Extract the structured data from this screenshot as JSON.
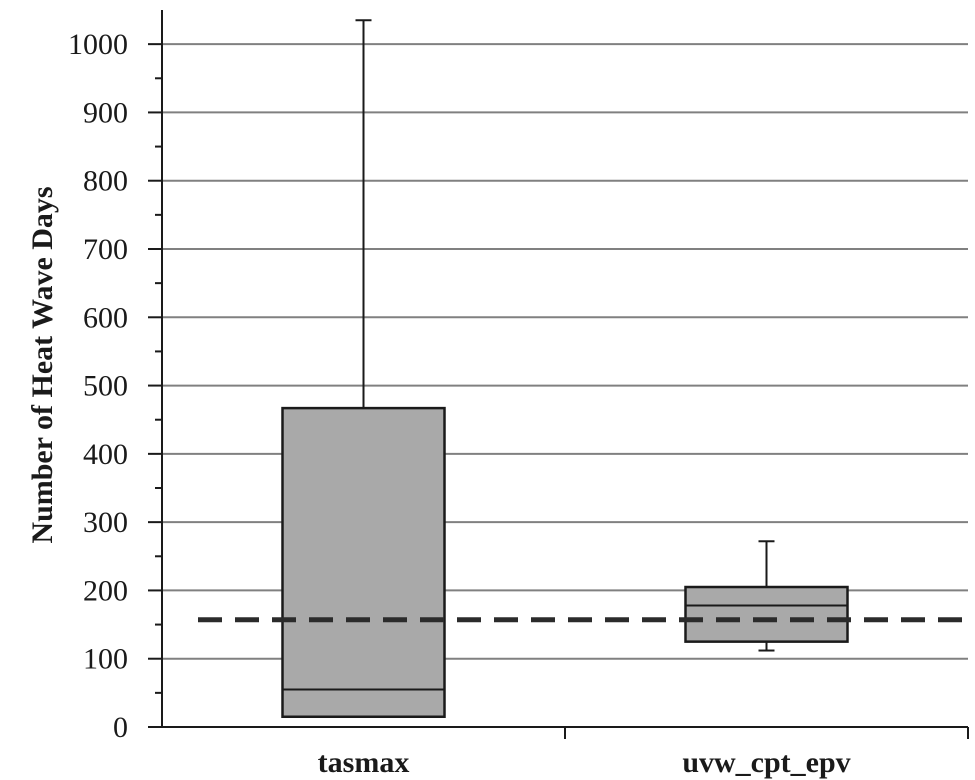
{
  "chart_data": {
    "type": "box",
    "title": "",
    "xlabel": "",
    "ylabel": "Number of Heat Wave Days",
    "ylim": [
      0,
      1050
    ],
    "yticks": [
      0,
      100,
      200,
      300,
      400,
      500,
      600,
      700,
      800,
      900,
      1000
    ],
    "ytick_labels": [
      "0",
      "100",
      "200",
      "300",
      "400",
      "500",
      "600",
      "700",
      "800",
      "900",
      "1000"
    ],
    "minor_tick_step": 50,
    "grid": true,
    "box_color": "#a9a9a9",
    "categories": [
      "tasmax",
      "uvw_cpt_epv"
    ],
    "boxes": [
      {
        "category": "tasmax",
        "min": 15,
        "q1": 15,
        "median": 55,
        "q3": 467,
        "max": 1035
      },
      {
        "category": "uvw_cpt_epv",
        "min": 112,
        "q1": 125,
        "median": 178,
        "q3": 205,
        "max": 272
      }
    ],
    "reference_line": {
      "value": 157,
      "style": "dashed",
      "color": "#2b2b2b"
    }
  }
}
